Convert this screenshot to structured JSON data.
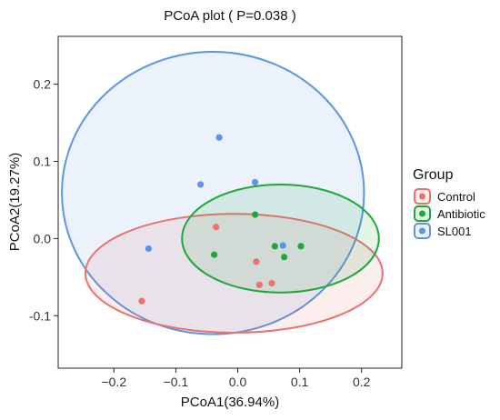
{
  "chart_data": {
    "type": "scatter",
    "title": "PCoA plot ( P=0.038 )",
    "xlabel": "PCoA1(36.94%)",
    "ylabel": "PCoA2(19.27%)",
    "xlim": [
      -0.29,
      0.265
    ],
    "ylim": [
      -0.168,
      0.262
    ],
    "xticks": [
      -0.2,
      -0.1,
      0.0,
      0.1,
      0.2
    ],
    "xtick_labels": [
      "−0.2",
      "−0.1",
      "0.0",
      "0.1",
      "0.2"
    ],
    "yticks": [
      -0.1,
      0.0,
      0.1,
      0.2
    ],
    "ytick_labels": [
      "-0.1",
      "0.0",
      "0.1",
      "0.2"
    ],
    "grid": false,
    "legend": {
      "title": "Group",
      "position": "right"
    },
    "series": [
      {
        "name": "Control",
        "color": "#e8736c",
        "points": [
          {
            "x": -0.155,
            "y": -0.081
          },
          {
            "x": -0.035,
            "y": 0.015
          },
          {
            "x": 0.03,
            "y": -0.03
          },
          {
            "x": 0.035,
            "y": -0.06
          },
          {
            "x": 0.055,
            "y": -0.058
          }
        ],
        "ellipse": {
          "cx": -0.006,
          "cy": -0.045,
          "rx": 0.24,
          "ry": 0.077,
          "angle_deg": 0
        }
      },
      {
        "name": "Antibiotic",
        "color": "#1fa83a",
        "points": [
          {
            "x": -0.038,
            "y": -0.021
          },
          {
            "x": 0.028,
            "y": 0.031
          },
          {
            "x": 0.06,
            "y": -0.01
          },
          {
            "x": 0.075,
            "y": -0.024
          },
          {
            "x": 0.102,
            "y": -0.01
          }
        ],
        "ellipse": {
          "cx": 0.069,
          "cy": 0.0,
          "rx": 0.159,
          "ry": 0.07,
          "angle_deg": 0
        }
      },
      {
        "name": "SL001",
        "color": "#5b95e6",
        "points": [
          {
            "x": -0.144,
            "y": -0.013
          },
          {
            "x": -0.06,
            "y": 0.07
          },
          {
            "x": -0.03,
            "y": 0.131
          },
          {
            "x": 0.028,
            "y": 0.073
          },
          {
            "x": 0.073,
            "y": -0.009
          }
        ],
        "ellipse": {
          "cx": -0.04,
          "cy": 0.059,
          "rx": 0.244,
          "ry": 0.183,
          "angle_deg": 0
        }
      }
    ]
  }
}
